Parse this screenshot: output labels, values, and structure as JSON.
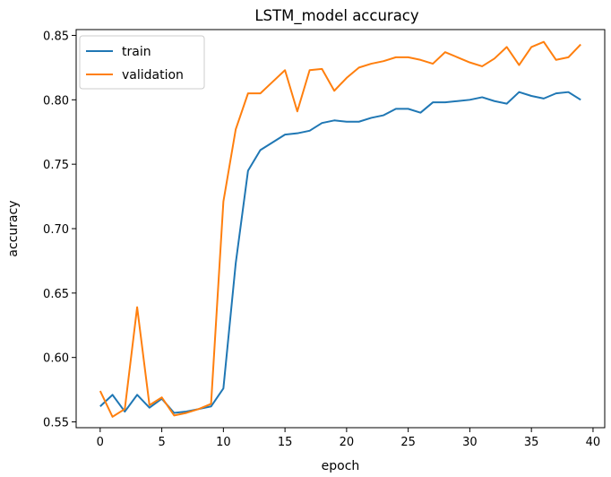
{
  "chart_data": {
    "type": "line",
    "title": "LSTM_model accuracy",
    "xlabel": "epoch",
    "ylabel": "accuracy",
    "xlim": [
      -1.95,
      40.95
    ],
    "ylim": [
      0.5455,
      0.8545
    ],
    "x_ticks": [
      0,
      5,
      10,
      15,
      20,
      25,
      30,
      35,
      40
    ],
    "y_ticks": [
      0.55,
      0.6,
      0.65,
      0.7,
      0.75,
      0.8,
      0.85
    ],
    "y_tick_labels": [
      "0.55",
      "0.60",
      "0.65",
      "0.70",
      "0.75",
      "0.80",
      "0.85"
    ],
    "x": [
      0,
      1,
      2,
      3,
      4,
      5,
      6,
      7,
      8,
      9,
      10,
      11,
      12,
      13,
      14,
      15,
      16,
      17,
      18,
      19,
      20,
      21,
      22,
      23,
      24,
      25,
      26,
      27,
      28,
      29,
      30,
      31,
      32,
      33,
      34,
      35,
      36,
      37,
      38,
      39
    ],
    "series": [
      {
        "name": "train",
        "color": "#1f77b4",
        "values": [
          0.562,
          0.571,
          0.558,
          0.571,
          0.561,
          0.568,
          0.557,
          0.558,
          0.56,
          0.562,
          0.576,
          0.673,
          0.745,
          0.761,
          0.767,
          0.773,
          0.774,
          0.776,
          0.782,
          0.784,
          0.783,
          0.783,
          0.786,
          0.788,
          0.793,
          0.793,
          0.79,
          0.798,
          0.798,
          0.799,
          0.8,
          0.802,
          0.799,
          0.797,
          0.806,
          0.803,
          0.801,
          0.805,
          0.806,
          0.8
        ]
      },
      {
        "name": "validation",
        "color": "#ff7f0e",
        "values": [
          0.574,
          0.554,
          0.56,
          0.639,
          0.563,
          0.569,
          0.555,
          0.557,
          0.56,
          0.564,
          0.721,
          0.777,
          0.805,
          0.805,
          0.814,
          0.823,
          0.791,
          0.823,
          0.824,
          0.807,
          0.817,
          0.825,
          0.828,
          0.83,
          0.833,
          0.833,
          0.831,
          0.828,
          0.837,
          0.833,
          0.829,
          0.826,
          0.832,
          0.841,
          0.827,
          0.841,
          0.845,
          0.831,
          0.833,
          0.843
        ]
      }
    ],
    "legend": {
      "position": "top-left"
    },
    "grid": false
  }
}
